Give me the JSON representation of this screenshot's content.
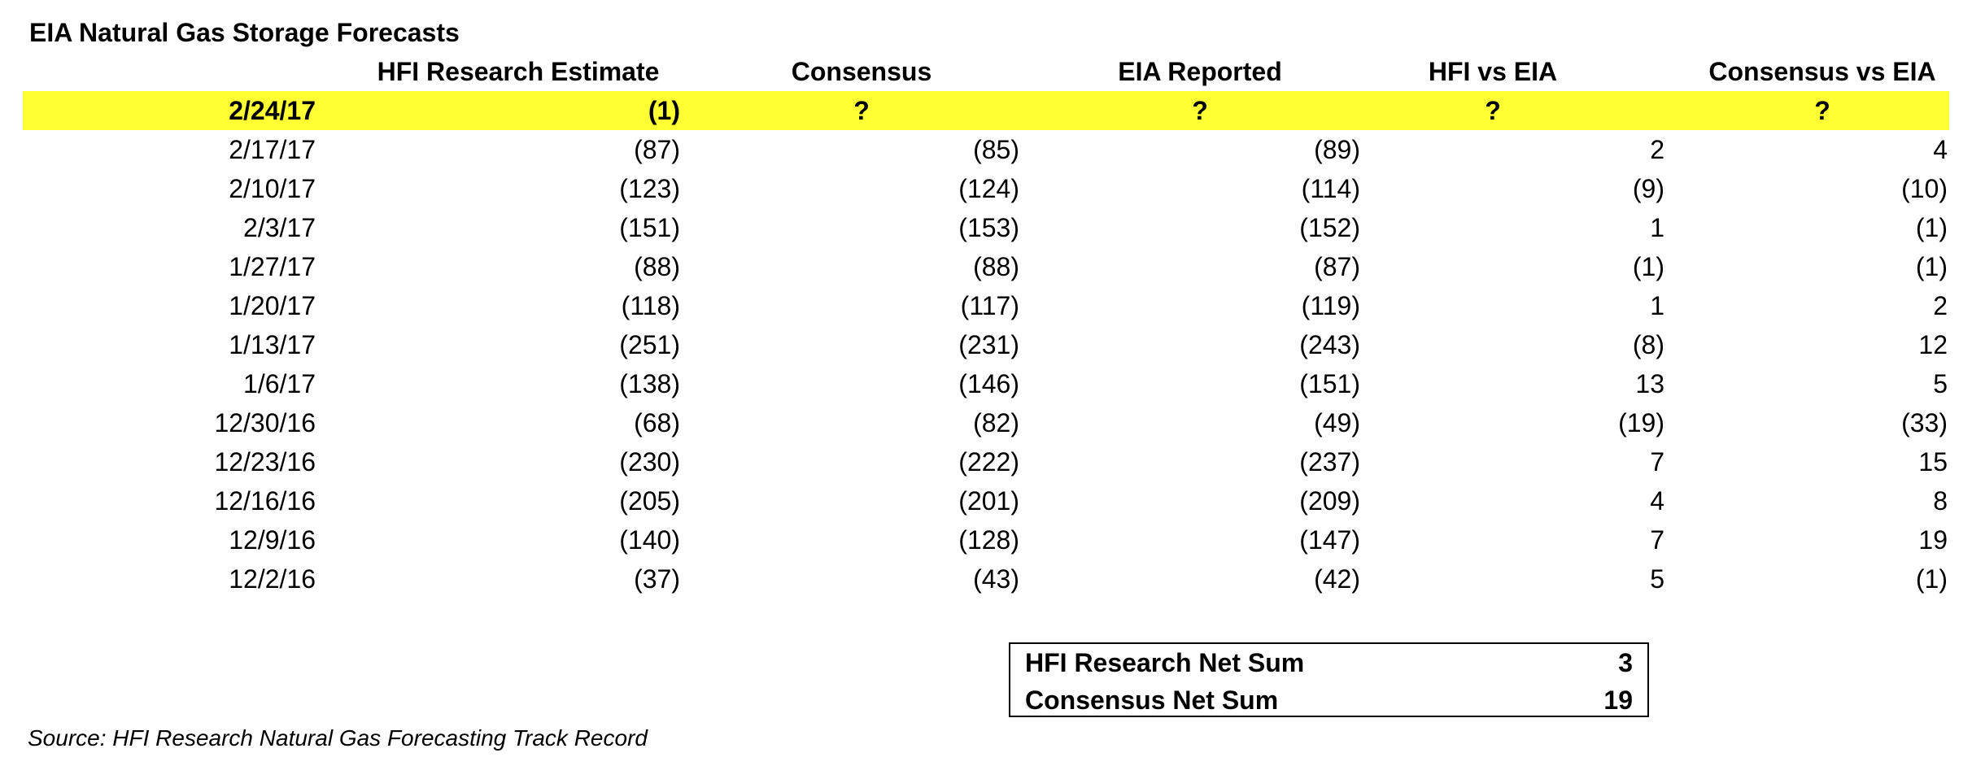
{
  "title": "EIA Natural Gas Storage Forecasts",
  "headers": {
    "hfi": "HFI Research Estimate",
    "consensus": "Consensus",
    "eia": "EIA Reported",
    "hfi_vs_eia": "HFI vs EIA",
    "cons_vs_eia": "Consensus vs EIA"
  },
  "rows": [
    {
      "date": "2/24/17",
      "hfi": "(1)",
      "consensus": "?",
      "eia": "?",
      "hfi_vs_eia": "?",
      "cons_vs_eia": "?"
    },
    {
      "date": "2/17/17",
      "hfi": "(87)",
      "consensus": "(85)",
      "eia": "(89)",
      "hfi_vs_eia": "2",
      "cons_vs_eia": "4"
    },
    {
      "date": "2/10/17",
      "hfi": "(123)",
      "consensus": "(124)",
      "eia": "(114)",
      "hfi_vs_eia": "(9)",
      "cons_vs_eia": "(10)"
    },
    {
      "date": "2/3/17",
      "hfi": "(151)",
      "consensus": "(153)",
      "eia": "(152)",
      "hfi_vs_eia": "1",
      "cons_vs_eia": "(1)"
    },
    {
      "date": "1/27/17",
      "hfi": "(88)",
      "consensus": "(88)",
      "eia": "(87)",
      "hfi_vs_eia": "(1)",
      "cons_vs_eia": "(1)"
    },
    {
      "date": "1/20/17",
      "hfi": "(118)",
      "consensus": "(117)",
      "eia": "(119)",
      "hfi_vs_eia": "1",
      "cons_vs_eia": "2"
    },
    {
      "date": "1/13/17",
      "hfi": "(251)",
      "consensus": "(231)",
      "eia": "(243)",
      "hfi_vs_eia": "(8)",
      "cons_vs_eia": "12"
    },
    {
      "date": "1/6/17",
      "hfi": "(138)",
      "consensus": "(146)",
      "eia": "(151)",
      "hfi_vs_eia": "13",
      "cons_vs_eia": "5"
    },
    {
      "date": "12/30/16",
      "hfi": "(68)",
      "consensus": "(82)",
      "eia": "(49)",
      "hfi_vs_eia": "(19)",
      "cons_vs_eia": "(33)"
    },
    {
      "date": "12/23/16",
      "hfi": "(230)",
      "consensus": "(222)",
      "eia": "(237)",
      "hfi_vs_eia": "7",
      "cons_vs_eia": "15"
    },
    {
      "date": "12/16/16",
      "hfi": "(205)",
      "consensus": "(201)",
      "eia": "(209)",
      "hfi_vs_eia": "4",
      "cons_vs_eia": "8"
    },
    {
      "date": "12/9/16",
      "hfi": "(140)",
      "consensus": "(128)",
      "eia": "(147)",
      "hfi_vs_eia": "7",
      "cons_vs_eia": "19"
    },
    {
      "date": "12/2/16",
      "hfi": "(37)",
      "consensus": "(43)",
      "eia": "(42)",
      "hfi_vs_eia": "5",
      "cons_vs_eia": "(1)"
    }
  ],
  "summary": {
    "hfi_label": "HFI Research Net Sum",
    "hfi_value": "3",
    "consensus_label": "Consensus Net Sum",
    "consensus_value": "19"
  },
  "source": "Source: HFI Research Natural Gas Forecasting Track Record",
  "colors": {
    "highlight": "#ffff33"
  }
}
